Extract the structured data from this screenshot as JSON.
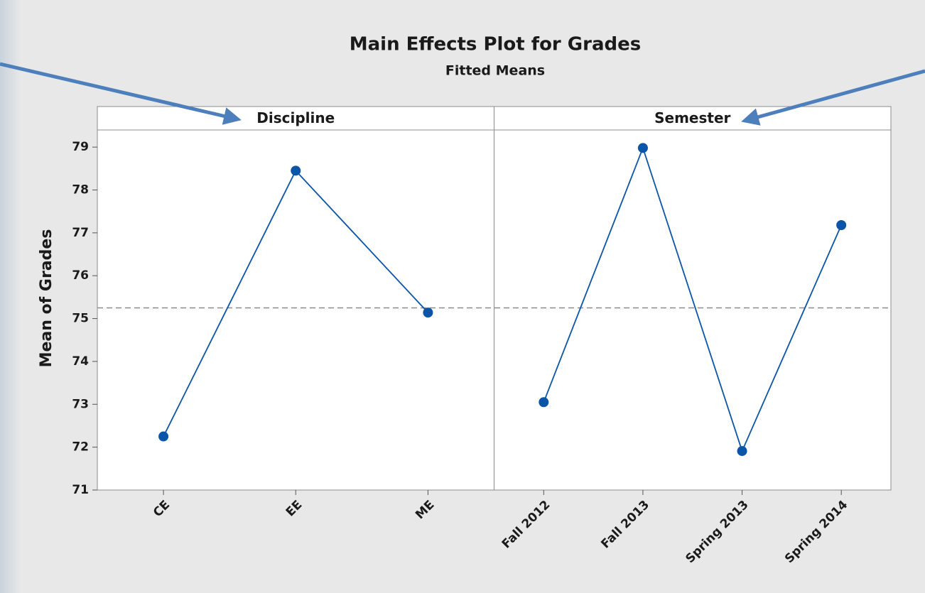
{
  "chart_data": {
    "type": "line",
    "title": "Main Effects Plot for Grades",
    "subtitle": "Fitted Means",
    "ylabel": "Mean of Grades",
    "ylim": [
      71,
      79.4
    ],
    "yticks": [
      71,
      72,
      73,
      74,
      75,
      76,
      77,
      78,
      79
    ],
    "reference_line": 75.25,
    "color": "#0b55a8",
    "panels": [
      {
        "title": "Discipline",
        "categories": [
          "CE",
          "EE",
          "ME"
        ],
        "values": [
          72.25,
          78.45,
          75.14
        ]
      },
      {
        "title": "Semester",
        "categories": [
          "Fall 2012",
          "Fall 2013",
          "Spring 2013",
          "Spring 2014"
        ],
        "values": [
          73.05,
          78.98,
          71.91,
          77.18
        ]
      }
    ]
  }
}
